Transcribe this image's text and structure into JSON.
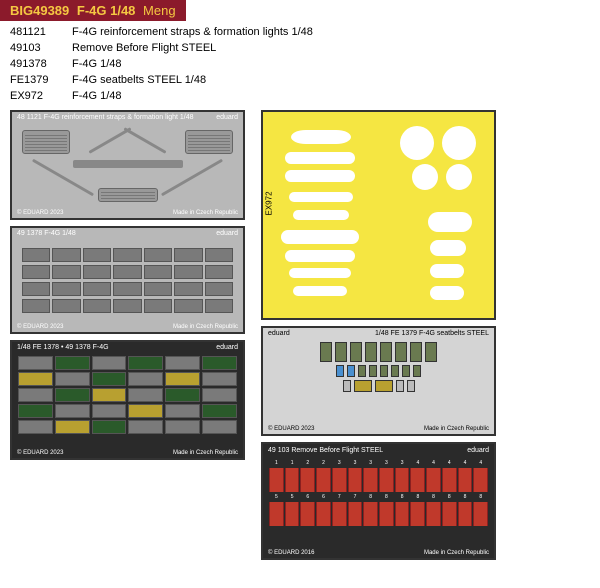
{
  "header": {
    "sku": "BIG49389",
    "name": "F-4G 1/48",
    "maker": "Meng"
  },
  "items": [
    {
      "sku": "481121",
      "name": "F-4G reinforcement straps & formation lights 1/48"
    },
    {
      "sku": "49103",
      "name": "Remove Before Flight STEEL"
    },
    {
      "sku": "491378",
      "name": "F-4G 1/48"
    },
    {
      "sku": "FE1379",
      "name": "F-4G seatbelts STEEL 1/48"
    },
    {
      "sku": "EX972",
      "name": "F-4G 1/48"
    }
  ],
  "panels": {
    "p1": {
      "title": "48 1121 F-4G reinforcement straps & formation light 1/48",
      "brand": "eduard",
      "copyright": "© EDUARD 2023",
      "footer": "Made in Czech Republic"
    },
    "p2": {
      "title": "49 1378 F-4G 1/48",
      "brand": "eduard",
      "copyright": "© EDUARD 2023",
      "footer": "Made in Czech Republic"
    },
    "p3": {
      "title": "1/48  FE 1378 • 49 1378 F-4G",
      "brand": "eduard",
      "copyright": "© EDUARD 2023",
      "footer": "Made in Czech Republic"
    },
    "py": {
      "label": "EX972"
    },
    "p4": {
      "title": "1/48  FE 1379 F-4G seatbelts STEEL",
      "brand": "eduard",
      "copyright": "© EDUARD 2023",
      "footer": "Made in Czech Republic"
    },
    "p5": {
      "title_l": "49 103  Remove Before Flight STEEL",
      "title_r": "eduard",
      "copyright": "© EDUARD 2016",
      "footer": "Made in Czech Republic",
      "nums_top": [
        "1",
        "1",
        "2",
        "2",
        "3",
        "3",
        "3",
        "3",
        "3",
        "4",
        "4",
        "4",
        "4",
        "4"
      ],
      "nums_bot": [
        "5",
        "5",
        "6",
        "6",
        "7",
        "7",
        "8",
        "8",
        "8",
        "8",
        "8",
        "8",
        "8",
        "8"
      ]
    }
  },
  "colors": {
    "header_bg": "#8b1a2b",
    "header_text": "#f5c842",
    "yellow": "#f5e642",
    "gray": "#b8b8b8",
    "rbf_red": "#c0392b",
    "belt_olive": "#6a7a50",
    "belt_blue": "#4a90d0"
  }
}
